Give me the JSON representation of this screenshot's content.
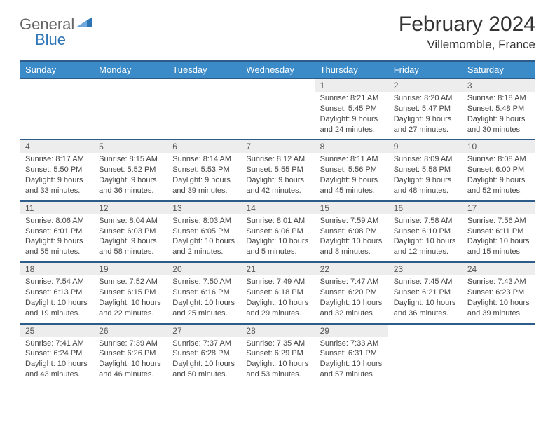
{
  "logo": {
    "part1": "General",
    "part2": "Blue"
  },
  "title": "February 2024",
  "location": "Villemomble, France",
  "colors": {
    "header_bg": "#3b8bc8",
    "header_border": "#2e5c8a",
    "daynum_bg": "#ededed",
    "brand_blue": "#2e75b6",
    "text_gray": "#666666"
  },
  "weekdays": [
    "Sunday",
    "Monday",
    "Tuesday",
    "Wednesday",
    "Thursday",
    "Friday",
    "Saturday"
  ],
  "weeks": [
    [
      null,
      null,
      null,
      null,
      {
        "n": "1",
        "sunrise": "8:21 AM",
        "sunset": "5:45 PM",
        "daylight": "9 hours and 24 minutes."
      },
      {
        "n": "2",
        "sunrise": "8:20 AM",
        "sunset": "5:47 PM",
        "daylight": "9 hours and 27 minutes."
      },
      {
        "n": "3",
        "sunrise": "8:18 AM",
        "sunset": "5:48 PM",
        "daylight": "9 hours and 30 minutes."
      }
    ],
    [
      {
        "n": "4",
        "sunrise": "8:17 AM",
        "sunset": "5:50 PM",
        "daylight": "9 hours and 33 minutes."
      },
      {
        "n": "5",
        "sunrise": "8:15 AM",
        "sunset": "5:52 PM",
        "daylight": "9 hours and 36 minutes."
      },
      {
        "n": "6",
        "sunrise": "8:14 AM",
        "sunset": "5:53 PM",
        "daylight": "9 hours and 39 minutes."
      },
      {
        "n": "7",
        "sunrise": "8:12 AM",
        "sunset": "5:55 PM",
        "daylight": "9 hours and 42 minutes."
      },
      {
        "n": "8",
        "sunrise": "8:11 AM",
        "sunset": "5:56 PM",
        "daylight": "9 hours and 45 minutes."
      },
      {
        "n": "9",
        "sunrise": "8:09 AM",
        "sunset": "5:58 PM",
        "daylight": "9 hours and 48 minutes."
      },
      {
        "n": "10",
        "sunrise": "8:08 AM",
        "sunset": "6:00 PM",
        "daylight": "9 hours and 52 minutes."
      }
    ],
    [
      {
        "n": "11",
        "sunrise": "8:06 AM",
        "sunset": "6:01 PM",
        "daylight": "9 hours and 55 minutes."
      },
      {
        "n": "12",
        "sunrise": "8:04 AM",
        "sunset": "6:03 PM",
        "daylight": "9 hours and 58 minutes."
      },
      {
        "n": "13",
        "sunrise": "8:03 AM",
        "sunset": "6:05 PM",
        "daylight": "10 hours and 2 minutes."
      },
      {
        "n": "14",
        "sunrise": "8:01 AM",
        "sunset": "6:06 PM",
        "daylight": "10 hours and 5 minutes."
      },
      {
        "n": "15",
        "sunrise": "7:59 AM",
        "sunset": "6:08 PM",
        "daylight": "10 hours and 8 minutes."
      },
      {
        "n": "16",
        "sunrise": "7:58 AM",
        "sunset": "6:10 PM",
        "daylight": "10 hours and 12 minutes."
      },
      {
        "n": "17",
        "sunrise": "7:56 AM",
        "sunset": "6:11 PM",
        "daylight": "10 hours and 15 minutes."
      }
    ],
    [
      {
        "n": "18",
        "sunrise": "7:54 AM",
        "sunset": "6:13 PM",
        "daylight": "10 hours and 19 minutes."
      },
      {
        "n": "19",
        "sunrise": "7:52 AM",
        "sunset": "6:15 PM",
        "daylight": "10 hours and 22 minutes."
      },
      {
        "n": "20",
        "sunrise": "7:50 AM",
        "sunset": "6:16 PM",
        "daylight": "10 hours and 25 minutes."
      },
      {
        "n": "21",
        "sunrise": "7:49 AM",
        "sunset": "6:18 PM",
        "daylight": "10 hours and 29 minutes."
      },
      {
        "n": "22",
        "sunrise": "7:47 AM",
        "sunset": "6:20 PM",
        "daylight": "10 hours and 32 minutes."
      },
      {
        "n": "23",
        "sunrise": "7:45 AM",
        "sunset": "6:21 PM",
        "daylight": "10 hours and 36 minutes."
      },
      {
        "n": "24",
        "sunrise": "7:43 AM",
        "sunset": "6:23 PM",
        "daylight": "10 hours and 39 minutes."
      }
    ],
    [
      {
        "n": "25",
        "sunrise": "7:41 AM",
        "sunset": "6:24 PM",
        "daylight": "10 hours and 43 minutes."
      },
      {
        "n": "26",
        "sunrise": "7:39 AM",
        "sunset": "6:26 PM",
        "daylight": "10 hours and 46 minutes."
      },
      {
        "n": "27",
        "sunrise": "7:37 AM",
        "sunset": "6:28 PM",
        "daylight": "10 hours and 50 minutes."
      },
      {
        "n": "28",
        "sunrise": "7:35 AM",
        "sunset": "6:29 PM",
        "daylight": "10 hours and 53 minutes."
      },
      {
        "n": "29",
        "sunrise": "7:33 AM",
        "sunset": "6:31 PM",
        "daylight": "10 hours and 57 minutes."
      },
      null,
      null
    ]
  ],
  "labels": {
    "sunrise": "Sunrise:",
    "sunset": "Sunset:",
    "daylight": "Daylight:"
  }
}
